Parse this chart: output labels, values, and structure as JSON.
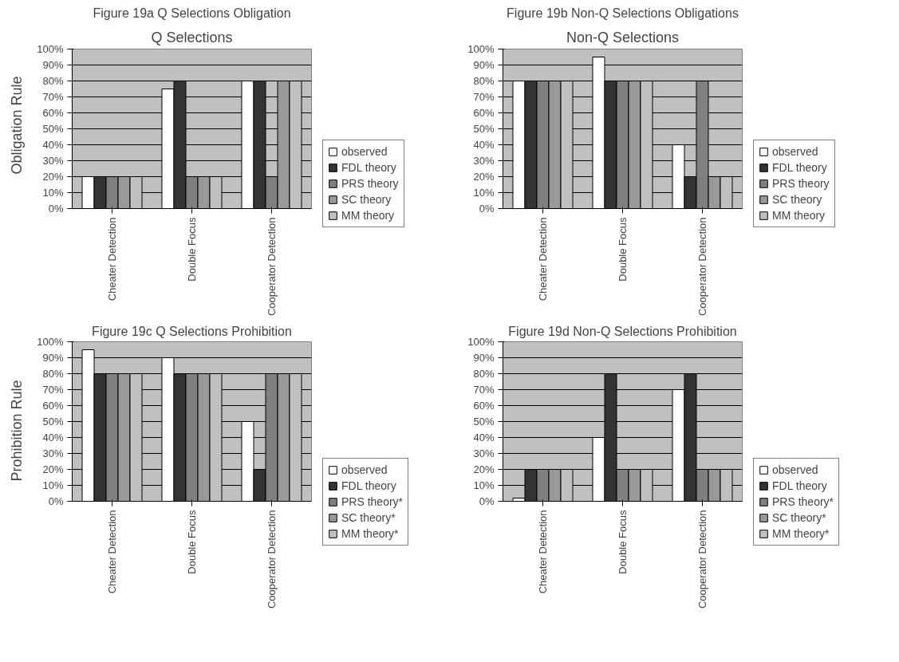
{
  "chart_data": [
    {
      "type": "bar",
      "title": "Figure 19a Q Selections Obligation",
      "annotations": [
        "Q Selections",
        "Obligation Rule"
      ],
      "categories": [
        "Cheater Detection",
        "Double Focus",
        "Cooperator Detection"
      ],
      "ylim": [
        0,
        100
      ],
      "yticks": [
        {
          "value": 0,
          "label": "0%"
        },
        {
          "value": 10,
          "label": "10%"
        },
        {
          "value": 20,
          "label": "20%"
        },
        {
          "value": 30,
          "label": "30%"
        },
        {
          "value": 40,
          "label": "40%"
        },
        {
          "value": 50,
          "label": "50%"
        },
        {
          "value": 60,
          "label": "60%"
        },
        {
          "value": 70,
          "label": "70%"
        },
        {
          "value": 80,
          "label": "80%"
        },
        {
          "value": 90,
          "label": "90%"
        },
        {
          "value": 100,
          "label": "100%"
        }
      ],
      "grid": "y",
      "legend": "right",
      "series": [
        {
          "name": "observed",
          "color": "#ffffff",
          "values": [
            20,
            75,
            80
          ]
        },
        {
          "name": "FDL theory",
          "color": "#333333",
          "values": [
            20,
            80,
            80
          ]
        },
        {
          "name": "PRS theory",
          "color": "#808080",
          "values": [
            20,
            20,
            20
          ]
        },
        {
          "name": "SC theory",
          "color": "#999999",
          "values": [
            20,
            20,
            80
          ]
        },
        {
          "name": "MM theory",
          "color": "#c0c0c0",
          "values": [
            20,
            20,
            80
          ]
        }
      ]
    },
    {
      "type": "bar",
      "title": "Figure 19b Non-Q Selections Obligations",
      "annotations": [
        "Non-Q Selections"
      ],
      "categories": [
        "Cheater Detection",
        "Double Focus",
        "Cooperator Detection"
      ],
      "ylim": [
        0,
        100
      ],
      "yticks": [
        {
          "value": 0,
          "label": "0%"
        },
        {
          "value": 10,
          "label": "10%"
        },
        {
          "value": 20,
          "label": "20%"
        },
        {
          "value": 30,
          "label": "30%"
        },
        {
          "value": 40,
          "label": "40%"
        },
        {
          "value": 50,
          "label": "50%"
        },
        {
          "value": 60,
          "label": "60%"
        },
        {
          "value": 70,
          "label": "70%"
        },
        {
          "value": 80,
          "label": "80%"
        },
        {
          "value": 90,
          "label": "90%"
        },
        {
          "value": 100,
          "label": "100%"
        }
      ],
      "grid": "y",
      "legend": "right",
      "series": [
        {
          "name": "observed",
          "color": "#ffffff",
          "values": [
            80,
            95,
            40
          ]
        },
        {
          "name": "FDL theory",
          "color": "#333333",
          "values": [
            80,
            80,
            20
          ]
        },
        {
          "name": "PRS theory",
          "color": "#808080",
          "values": [
            80,
            80,
            80
          ]
        },
        {
          "name": "SC theory",
          "color": "#999999",
          "values": [
            80,
            80,
            20
          ]
        },
        {
          "name": "MM theory",
          "color": "#c0c0c0",
          "values": [
            80,
            80,
            20
          ]
        }
      ]
    },
    {
      "type": "bar",
      "title": "Figure 19c Q Selections Prohibition",
      "annotations": [
        "Prohibition Rule"
      ],
      "categories": [
        "Cheater Detection",
        "Double Focus",
        "Cooperator Detection"
      ],
      "ylim": [
        0,
        100
      ],
      "yticks": [
        {
          "value": 0,
          "label": "0%"
        },
        {
          "value": 10,
          "label": "10%"
        },
        {
          "value": 20,
          "label": "20%"
        },
        {
          "value": 30,
          "label": "30%"
        },
        {
          "value": 40,
          "label": "40%"
        },
        {
          "value": 50,
          "label": "50%"
        },
        {
          "value": 60,
          "label": "60%"
        },
        {
          "value": 70,
          "label": "70%"
        },
        {
          "value": 80,
          "label": "80%"
        },
        {
          "value": 90,
          "label": "90%"
        },
        {
          "value": 100,
          "label": "100%"
        }
      ],
      "grid": "y",
      "legend": "right",
      "series": [
        {
          "name": "observed",
          "color": "#ffffff",
          "values": [
            95,
            90,
            50
          ]
        },
        {
          "name": "FDL theory",
          "color": "#333333",
          "values": [
            80,
            80,
            20
          ]
        },
        {
          "name": "PRS theory*",
          "color": "#808080",
          "values": [
            80,
            80,
            80
          ]
        },
        {
          "name": "SC theory*",
          "color": "#999999",
          "values": [
            80,
            80,
            80
          ]
        },
        {
          "name": "MM theory*",
          "color": "#c0c0c0",
          "values": [
            80,
            80,
            80
          ]
        }
      ]
    },
    {
      "type": "bar",
      "title": "Figure 19d Non-Q Selections Prohibition",
      "categories": [
        "Cheater Detection",
        "Double Focus",
        "Cooperator Detection"
      ],
      "ylim": [
        0,
        100
      ],
      "yticks": [
        {
          "value": 0,
          "label": "0%"
        },
        {
          "value": 10,
          "label": "10%"
        },
        {
          "value": 20,
          "label": "20%"
        },
        {
          "value": 30,
          "label": "30%"
        },
        {
          "value": 40,
          "label": "40%"
        },
        {
          "value": 50,
          "label": "50%"
        },
        {
          "value": 60,
          "label": "60%"
        },
        {
          "value": 70,
          "label": "70%"
        },
        {
          "value": 80,
          "label": "80%"
        },
        {
          "value": 90,
          "label": "90%"
        },
        {
          "value": 100,
          "label": "100%"
        }
      ],
      "grid": "y",
      "legend": "right",
      "series": [
        {
          "name": "observed",
          "color": "#ffffff",
          "values": [
            2,
            40,
            70
          ]
        },
        {
          "name": "FDL theory",
          "color": "#333333",
          "values": [
            20,
            80,
            80
          ]
        },
        {
          "name": "PRS theory*",
          "color": "#808080",
          "values": [
            20,
            20,
            20
          ]
        },
        {
          "name": "SC theory*",
          "color": "#999999",
          "values": [
            20,
            20,
            20
          ]
        },
        {
          "name": "MM theory*",
          "color": "#c0c0c0",
          "values": [
            20,
            20,
            20
          ]
        }
      ]
    }
  ]
}
